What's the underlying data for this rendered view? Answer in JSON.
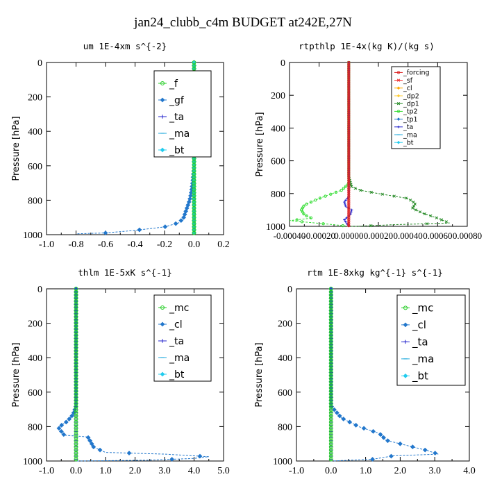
{
  "figure": {
    "title": "jan24_clubb_c4m  BUDGET at242E,27N"
  },
  "colors": {
    "_f": "#22cc22",
    "_gf": "#2277cc",
    "_ta": "#2222cc",
    "_ma": "#22aadd",
    "_bt": "#22ccee",
    "_forcing": "#dd2222",
    "_sf": "#ee2222",
    "_cl": "#ffaa00",
    "_dp2": "#ffcc33",
    "_dp1": "#228822",
    "_tp2": "#33dd33",
    "_tp1": "#2277cc",
    "_mc": "#22cc22",
    "_cl_b": "#2277cc"
  },
  "chart_data": [
    {
      "type": "line",
      "title": "um   1E-4xm s^{-2}",
      "ylabel": "Pressure [hPa]",
      "xlim": [
        -1.0,
        0.2
      ],
      "ylim": [
        1000,
        0
      ],
      "xticks": [
        -1.0,
        -0.8,
        -0.6,
        -0.4,
        -0.2,
        0.0,
        0.2
      ],
      "xtick_labels": [
        "-1.0",
        "-0.8",
        "-0.6",
        "-0.4",
        "-0.2",
        "0.0",
        "0.2"
      ],
      "yticks": [
        0,
        200,
        400,
        600,
        800,
        1000
      ],
      "ytick_labels": [
        "0",
        "200",
        "400",
        "600",
        "800",
        "1000"
      ],
      "legend": [
        "_f",
        "_gf",
        "_ta",
        "_ma",
        "_bt"
      ],
      "series": [
        {
          "name": "_f",
          "x": [
            0,
            0,
            0,
            0,
            0,
            0,
            0,
            0,
            0,
            0,
            0
          ],
          "y": [
            0,
            100,
            200,
            300,
            400,
            500,
            600,
            700,
            800,
            900,
            1000
          ]
        },
        {
          "name": "_gf",
          "x": [
            0,
            0,
            -0.01,
            -0.02,
            -0.03,
            -0.05,
            -0.07,
            -0.1,
            -0.2,
            -0.4,
            -0.6,
            -0.8
          ],
          "y": [
            0,
            600,
            700,
            760,
            800,
            850,
            900,
            930,
            955,
            975,
            990,
            995
          ]
        },
        {
          "name": "_ta",
          "x": [
            0,
            0,
            0
          ],
          "y": [
            0,
            500,
            1000
          ]
        },
        {
          "name": "_ma",
          "x": [
            0,
            0,
            0
          ],
          "y": [
            0,
            500,
            1000
          ]
        },
        {
          "name": "_bt",
          "x": [
            0,
            0,
            0
          ],
          "y": [
            0,
            500,
            1000
          ]
        }
      ]
    },
    {
      "type": "line",
      "title": "rtpthlp   1E-4x(kg K)/(kg s)",
      "ylabel": "Pressure [hPa]",
      "xlim": [
        -0.0004,
        0.0008
      ],
      "ylim": [
        1000,
        0
      ],
      "xticks": [
        -0.0004,
        -0.0002,
        0.0,
        0.0002,
        0.0004,
        0.0006,
        0.0008
      ],
      "xtick_labels": [
        "-0.00040",
        "-0.00020",
        "0.00000",
        "0.00020",
        "0.00040",
        "0.00060",
        "0.00080"
      ],
      "yticks": [
        0,
        200,
        400,
        600,
        800,
        1000
      ],
      "ytick_labels": [
        "0",
        "200",
        "400",
        "600",
        "800",
        "1000"
      ],
      "legend": [
        "_forcing",
        "_sf",
        "_cl",
        "_dp2",
        "_dp1",
        "_tp2",
        "_tp1",
        "_ta",
        "_ma",
        "_bt"
      ],
      "series": [
        {
          "name": "_forcing",
          "x": [
            0,
            0,
            0
          ],
          "y": [
            0,
            500,
            1000
          ]
        },
        {
          "name": "_dp1",
          "x": [
            0,
            0,
            2e-05,
            8e-05,
            0.0002,
            0.0004,
            0.00045,
            0.00043,
            0.0005,
            0.0006,
            0.00068,
            0.0003,
            5e-05,
            0
          ],
          "y": [
            0,
            700,
            760,
            780,
            800,
            830,
            860,
            890,
            920,
            950,
            980,
            990,
            1000,
            1000
          ]
        },
        {
          "name": "_tp2",
          "x": [
            0,
            0,
            -5e-05,
            -0.0002,
            -0.0003,
            -0.00032,
            -0.0003,
            -0.00025,
            -0.0004,
            -0.0001,
            0
          ],
          "y": [
            0,
            740,
            780,
            830,
            870,
            900,
            930,
            950,
            965,
            990,
            1000
          ]
        },
        {
          "name": "_ta",
          "x": [
            0,
            0,
            -3e-05,
            -2e-05,
            2e-05,
            1e-05,
            -3e-05,
            0
          ],
          "y": [
            0,
            820,
            850,
            880,
            900,
            930,
            960,
            1000
          ]
        }
      ]
    },
    {
      "type": "line",
      "title": "thlm   1E-5xK s^{-1}",
      "ylabel": "Pressure [hPa]",
      "xlim": [
        -1.0,
        5.0
      ],
      "ylim": [
        1000,
        0
      ],
      "xticks": [
        -1.0,
        0.0,
        1.0,
        2.0,
        3.0,
        4.0,
        5.0
      ],
      "xtick_labels": [
        "-1.0",
        "0.0",
        "1.0",
        "2.0",
        "3.0",
        "4.0",
        "5.0"
      ],
      "yticks": [
        0,
        200,
        400,
        600,
        800,
        1000
      ],
      "ytick_labels": [
        "0",
        "200",
        "400",
        "600",
        "800",
        "1000"
      ],
      "legend": [
        "_mc",
        "_cl",
        "_ta",
        "_ma",
        "_bt"
      ],
      "series": [
        {
          "name": "_mc",
          "x": [
            0,
            0,
            0
          ],
          "y": [
            0,
            500,
            1000
          ]
        },
        {
          "name": "_cl",
          "x": [
            0,
            0,
            -0.1,
            -0.3,
            -0.6,
            -0.4,
            0.4,
            0.6,
            1.0,
            3.0,
            4.5,
            4.0,
            2.5,
            0.0
          ],
          "y": [
            0,
            680,
            730,
            770,
            805,
            850,
            860,
            920,
            950,
            960,
            975,
            985,
            995,
            1000
          ]
        },
        {
          "name": "_ta",
          "x": [
            0,
            0,
            0
          ],
          "y": [
            0,
            500,
            1000
          ]
        }
      ]
    },
    {
      "type": "line",
      "title": "rtm   1E-8xkg kg^{-1} s^{-1}",
      "ylabel": "Pressure [hPa]",
      "xlim": [
        -1.0,
        4.0
      ],
      "ylim": [
        1000,
        0
      ],
      "xticks": [
        -1.0,
        0.0,
        1.0,
        2.0,
        3.0,
        4.0
      ],
      "xtick_labels": [
        "-1.0",
        "0.0",
        "1.0",
        "2.0",
        "3.0",
        "4.0"
      ],
      "yticks": [
        0,
        200,
        400,
        600,
        800,
        1000
      ],
      "ytick_labels": [
        "0",
        "200",
        "400",
        "600",
        "800",
        "1000"
      ],
      "legend": [
        "_mc",
        "_cl",
        "_ta",
        "_ma",
        "_bt"
      ],
      "series": [
        {
          "name": "_mc",
          "x": [
            0,
            0,
            0
          ],
          "y": [
            0,
            500,
            1000
          ]
        },
        {
          "name": "_cl",
          "x": [
            0,
            0,
            0.3,
            0.8,
            1.4,
            1.6,
            2.2,
            2.8,
            3.1,
            1.8,
            1.2,
            0.0
          ],
          "y": [
            0,
            680,
            750,
            800,
            840,
            880,
            910,
            940,
            960,
            970,
            990,
            1000
          ]
        },
        {
          "name": "_ta",
          "x": [
            0,
            0,
            0
          ],
          "y": [
            0,
            500,
            1000
          ]
        }
      ]
    }
  ]
}
